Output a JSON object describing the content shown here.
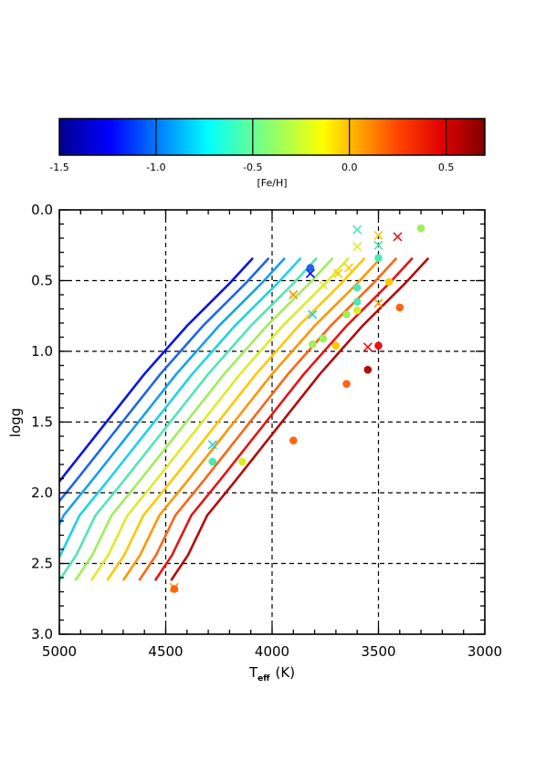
{
  "colorbar": {
    "label": "[Fe/H]",
    "range": [
      -1.5,
      0.7
    ],
    "ticks": [
      -1.5,
      -1.0,
      -0.5,
      0.0,
      0.5
    ],
    "tick_labels": [
      "-1.5",
      "-1.0",
      "-0.5",
      "0.0",
      "0.5"
    ]
  },
  "chart_data": {
    "type": "line",
    "xlabel_main": "T",
    "xlabel_sub": "eff",
    "xlabel_unit": "(K)",
    "ylabel": "logg",
    "xlim": [
      5000,
      3000
    ],
    "ylim": [
      3.0,
      0.0
    ],
    "x_ticks": [
      5000,
      4500,
      4000,
      3500,
      3000
    ],
    "x_tick_labels": [
      "5000",
      "4500",
      "4000",
      "3500",
      "3000"
    ],
    "y_ticks": [
      0.0,
      0.5,
      1.0,
      1.5,
      2.0,
      2.5,
      3.0
    ],
    "y_tick_labels": [
      "0.0",
      "0.5",
      "1.0",
      "1.5",
      "2.0",
      "2.5",
      "3.0"
    ],
    "grid": "dashed",
    "isochrone_x_shift_per_dex": 300,
    "isochrones": [
      {
        "feh": -1.0,
        "color": "#0a14e6"
      },
      {
        "feh": -0.75,
        "color": "#1e64f0"
      },
      {
        "feh": -0.5,
        "color": "#14a0f0"
      },
      {
        "feh": -0.25,
        "color": "#1ed2e6"
      },
      {
        "feh": 0.0,
        "color": "#50e6b4"
      },
      {
        "feh": 0.25,
        "color": "#a0ee5a"
      },
      {
        "feh": 0.5,
        "color": "#dcec28"
      },
      {
        "feh": 0.75,
        "color": "#ffc800"
      },
      {
        "feh": 1.0,
        "color": "#ff9600"
      },
      {
        "feh": 1.25,
        "color": "#ff6414"
      },
      {
        "feh": 1.5,
        "color": "#e61414"
      },
      {
        "feh": 1.75,
        "color": "#b40a0a"
      }
    ],
    "base_isochrone": [
      {
        "teff": 5000,
        "logg": 2.62
      },
      {
        "teff": 4920,
        "logg": 2.44
      },
      {
        "teff": 4830,
        "logg": 2.16
      },
      {
        "teff": 4700,
        "logg": 1.92
      },
      {
        "teff": 4500,
        "logg": 1.54
      },
      {
        "teff": 4300,
        "logg": 1.16
      },
      {
        "teff": 4100,
        "logg": 0.82
      },
      {
        "teff": 3900,
        "logg": 0.52
      },
      {
        "teff": 3790,
        "logg": 0.34
      }
    ],
    "stars_dots": [
      {
        "teff": 3820,
        "logg": 0.41,
        "color": "#1e64f0"
      },
      {
        "teff": 3500,
        "logg": 0.34,
        "color": "#50e6b4"
      },
      {
        "teff": 3300,
        "logg": 0.13,
        "color": "#a0ee5a"
      },
      {
        "teff": 3600,
        "logg": 0.55,
        "color": "#50e6b4"
      },
      {
        "teff": 3600,
        "logg": 0.65,
        "color": "#50e6b4"
      },
      {
        "teff": 3650,
        "logg": 0.74,
        "color": "#a0ee5a"
      },
      {
        "teff": 3600,
        "logg": 0.71,
        "color": "#dcec28"
      },
      {
        "teff": 3450,
        "logg": 0.51,
        "color": "#ffc800"
      },
      {
        "teff": 3810,
        "logg": 0.95,
        "color": "#a0ee5a"
      },
      {
        "teff": 3760,
        "logg": 0.91,
        "color": "#a0ee5a"
      },
      {
        "teff": 3700,
        "logg": 0.96,
        "color": "#ffc800"
      },
      {
        "teff": 3400,
        "logg": 0.69,
        "color": "#ff6414"
      },
      {
        "teff": 3500,
        "logg": 0.96,
        "color": "#e61414"
      },
      {
        "teff": 3550,
        "logg": 1.13,
        "color": "#b40a0a"
      },
      {
        "teff": 3650,
        "logg": 1.23,
        "color": "#ff6414"
      },
      {
        "teff": 3900,
        "logg": 1.63,
        "color": "#ff6414"
      },
      {
        "teff": 4280,
        "logg": 1.78,
        "color": "#50e6b4"
      },
      {
        "teff": 4140,
        "logg": 1.78,
        "color": "#dcec28"
      },
      {
        "teff": 4460,
        "logg": 2.68,
        "color": "#ff6414"
      }
    ],
    "stars_crosses": [
      {
        "teff": 3820,
        "logg": 0.45,
        "color": "#0a14e6"
      },
      {
        "teff": 3900,
        "logg": 0.6,
        "color": "#ff9600"
      },
      {
        "teff": 3810,
        "logg": 0.74,
        "color": "#1ed2e6"
      },
      {
        "teff": 3600,
        "logg": 0.14,
        "color": "#50e6b4"
      },
      {
        "teff": 3600,
        "logg": 0.26,
        "color": "#dcec28"
      },
      {
        "teff": 3640,
        "logg": 0.41,
        "color": "#ffc800"
      },
      {
        "teff": 3690,
        "logg": 0.45,
        "color": "#ffc800"
      },
      {
        "teff": 3760,
        "logg": 0.53,
        "color": "#dcec28"
      },
      {
        "teff": 3500,
        "logg": 0.25,
        "color": "#50e6b4"
      },
      {
        "teff": 3500,
        "logg": 0.18,
        "color": "#ffc800"
      },
      {
        "teff": 3410,
        "logg": 0.19,
        "color": "#e61414"
      },
      {
        "teff": 3500,
        "logg": 0.66,
        "color": "#ff9600"
      },
      {
        "teff": 3550,
        "logg": 0.97,
        "color": "#e61414"
      },
      {
        "teff": 4280,
        "logg": 1.66,
        "color": "#1ed2e6"
      },
      {
        "teff": 4460,
        "logg": 2.67,
        "color": "#ff9600"
      }
    ]
  }
}
